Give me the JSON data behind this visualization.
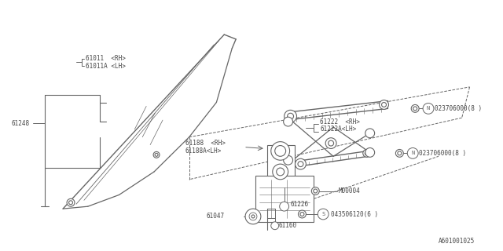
{
  "bg_color": "#ffffff",
  "line_color": "#666666",
  "text_color": "#444444",
  "fs": 5.5,
  "parts_labels": {
    "61011": "61011  <RH>",
    "61011A": "61011A <LH>",
    "61248": "61248",
    "61188": "61188  <RH>",
    "61188A": "61188A<LH>",
    "61222": "61222  <RH>",
    "61222A": "61222A<LH>",
    "61226": "61226",
    "61047": "61047",
    "61160": "61160",
    "N1": "N023706000(8 )",
    "N2": "N023706000(8 )",
    "M00004": "M00004",
    "S": "S043506120(6 )"
  },
  "ref_code": "A601001025"
}
